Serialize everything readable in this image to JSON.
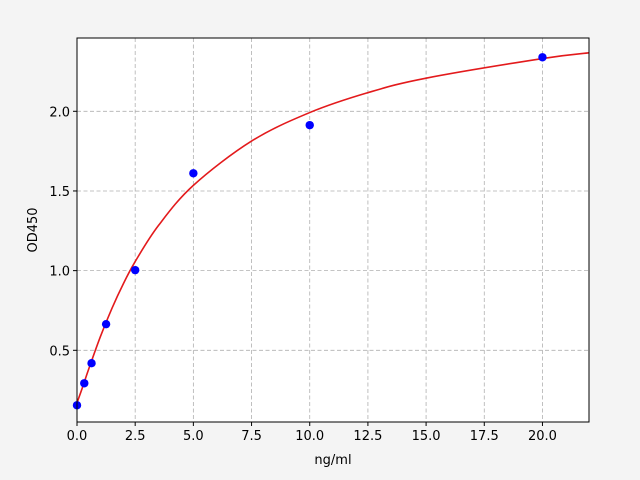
{
  "chart_data": {
    "type": "scatter",
    "title": "",
    "xlabel": "ng/ml",
    "ylabel": "OD450",
    "xlim": [
      0,
      22
    ],
    "ylim": [
      0.05,
      2.46
    ],
    "xticks": [
      0,
      2.5,
      5,
      7.5,
      10,
      12.5,
      15,
      17.5,
      20
    ],
    "xtick_labels": [
      "0.0",
      "2.5",
      "5.0",
      "7.5",
      "10.0",
      "12.5",
      "15.0",
      "17.5",
      "20.0"
    ],
    "yticks": [
      0.5,
      1.0,
      1.5,
      2.0
    ],
    "ytick_labels": [
      "0.5",
      "1.0",
      "1.5",
      "2.0"
    ],
    "grid": true,
    "series": [
      {
        "type": "scatter",
        "color": "#0000ff",
        "x": [
          0,
          0.3125,
          0.625,
          1.25,
          2.5,
          5,
          10,
          20
        ],
        "y": [
          0.155,
          0.293,
          0.419,
          0.664,
          1.003,
          1.611,
          1.913,
          2.339
        ]
      },
      {
        "type": "line",
        "color": "#e31a1c",
        "x": [
          0,
          0.25,
          0.5,
          1,
          1.5,
          2,
          2.5,
          3.5,
          5,
          7.5,
          10,
          12.5,
          15,
          20,
          22
        ],
        "y": [
          0.17,
          0.273,
          0.381,
          0.584,
          0.763,
          0.92,
          1.057,
          1.283,
          1.535,
          1.813,
          1.992,
          2.117,
          2.208,
          2.331,
          2.367
        ]
      }
    ]
  }
}
